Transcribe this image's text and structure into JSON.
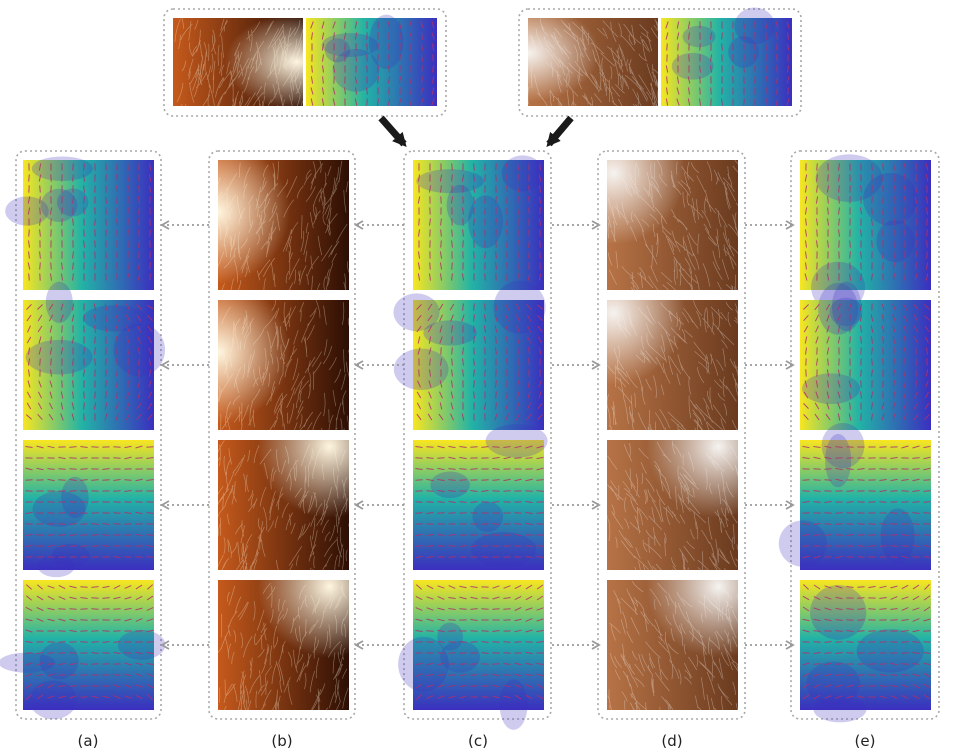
{
  "figure": {
    "columns": [
      {
        "id": "a",
        "label": "(a)",
        "content": "orientation-map"
      },
      {
        "id": "b",
        "label": "(b)",
        "content": "orange-fur-texture"
      },
      {
        "id": "c",
        "label": "(c)",
        "content": "orientation-map"
      },
      {
        "id": "d",
        "label": "(d)",
        "content": "brown-white-fur-texture"
      },
      {
        "id": "e",
        "label": "(e)",
        "content": "orientation-map"
      }
    ],
    "exemplars": [
      {
        "id": "orange-exemplar",
        "texture": "orange-fur-texture",
        "arrow_to": "c"
      },
      {
        "id": "brown-exemplar",
        "texture": "brown-white-fur-texture",
        "arrow_to": "c"
      }
    ],
    "rows": 4,
    "flow_arrows": [
      {
        "from": "c",
        "to": "b"
      },
      {
        "from": "b",
        "to": "a"
      },
      {
        "from": "c",
        "to": "d"
      },
      {
        "from": "d",
        "to": "e"
      }
    ],
    "colors": {
      "map_low": "#3b2fbf",
      "map_mid": "#22b3a6",
      "map_high": "#f8e620",
      "field_strokes": "#b0306a",
      "frame_border": "#a8a8a8",
      "flow_arrow": "#9a9a9a",
      "exemplar_arrow": "#1a1a1a",
      "orange_fur_dark": "#2c0e04",
      "orange_fur_mid": "#c65a1c",
      "orange_fur_light": "#fff6e0",
      "brown_fur_dark": "#6a3a1e",
      "brown_fur_mid": "#b77346",
      "brown_fur_light": "#f6f3f0"
    }
  }
}
